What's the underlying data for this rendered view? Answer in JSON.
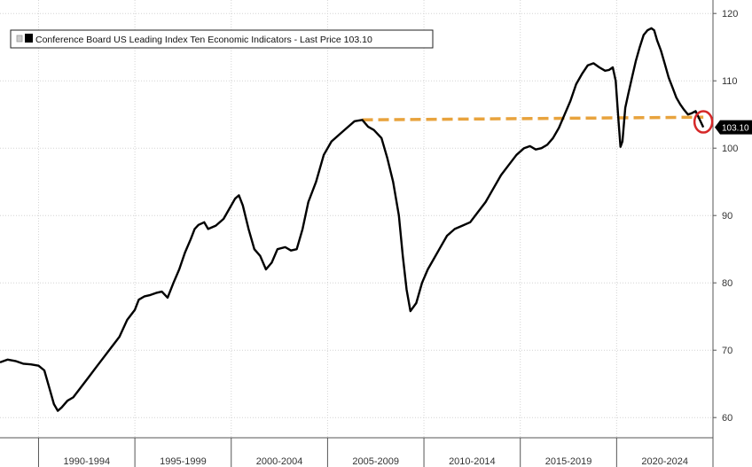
{
  "chart_data": {
    "type": "line",
    "legend": {
      "label": "Conference Board US Leading Index Ten Economic Indicators - Last Price 103.10",
      "placement": "top-left"
    },
    "last_price_label": "103.10",
    "x_labels": [
      "1990-1994",
      "1995-1999",
      "2000-2004",
      "2005-2009",
      "2010-2014",
      "2015-2019",
      "2020-2024"
    ],
    "xlim": [
      1988.0,
      2025.0
    ],
    "ylim": [
      57,
      122
    ],
    "y_ticks": [
      60,
      70,
      80,
      90,
      100,
      110,
      120
    ],
    "grid": true,
    "colors": {
      "series": "#000000",
      "reference": "#e8a33d",
      "highlight": "#d62828",
      "last_badge": "#000000"
    },
    "reference_line": {
      "x_start": 2006.8,
      "x_end": 2024.5,
      "y_start": 104.2,
      "y_end": 104.6
    },
    "highlight_point": {
      "x": 2024.5,
      "y": 103.9
    },
    "series": [
      {
        "x": [
          1988.0,
          1988.4,
          1988.8,
          1989.2,
          1989.6,
          1990.0,
          1990.3,
          1990.6,
          1990.8,
          1991.0,
          1991.2,
          1991.5,
          1991.8,
          1992.2,
          1992.6,
          1993.0,
          1993.4,
          1993.8,
          1994.2,
          1994.6,
          1995.0,
          1995.2,
          1995.5,
          1995.8,
          1996.1,
          1996.4,
          1996.7,
          1997.0,
          1997.3,
          1997.6,
          1997.9,
          1998.1,
          1998.3,
          1998.6,
          1998.8,
          1999.2,
          1999.6,
          1999.9,
          2000.2,
          2000.4,
          2000.6,
          2000.9,
          2001.2,
          2001.5,
          2001.8,
          2002.1,
          2002.4,
          2002.8,
          2003.1,
          2003.4,
          2003.7,
          2004.0,
          2004.4,
          2004.8,
          2005.2,
          2005.6,
          2006.0,
          2006.4,
          2006.8,
          2007.1,
          2007.4,
          2007.8,
          2008.1,
          2008.4,
          2008.7,
          2008.9,
          2009.1,
          2009.3,
          2009.6,
          2009.9,
          2010.2,
          2010.5,
          2010.8,
          2011.2,
          2011.6,
          2012.0,
          2012.4,
          2012.8,
          2013.2,
          2013.6,
          2014.0,
          2014.4,
          2014.8,
          2015.2,
          2015.5,
          2015.8,
          2016.1,
          2016.4,
          2016.7,
          2017.0,
          2017.3,
          2017.6,
          2017.9,
          2018.2,
          2018.5,
          2018.8,
          2019.1,
          2019.4,
          2019.6,
          2019.8,
          2019.95,
          2020.1,
          2020.2,
          2020.3,
          2020.45,
          2020.6,
          2020.8,
          2021.0,
          2021.2,
          2021.4,
          2021.6,
          2021.8,
          2021.95,
          2022.1,
          2022.3,
          2022.5,
          2022.7,
          2022.9,
          2023.1,
          2023.3,
          2023.5,
          2023.7,
          2023.9,
          2024.1,
          2024.3,
          2024.5
        ],
        "y": [
          68.2,
          68.6,
          68.4,
          68.0,
          67.9,
          67.7,
          67.0,
          64.0,
          62.0,
          61.0,
          61.5,
          62.5,
          63.0,
          64.5,
          66.0,
          67.5,
          69.0,
          70.5,
          72.0,
          74.5,
          76.0,
          77.5,
          78.0,
          78.2,
          78.5,
          78.7,
          77.8,
          80.0,
          82.0,
          84.5,
          86.5,
          88.0,
          88.6,
          89.0,
          88.0,
          88.5,
          89.5,
          91.0,
          92.5,
          93.0,
          91.5,
          88.0,
          85.0,
          84.0,
          82.0,
          83.0,
          85.0,
          85.3,
          84.8,
          85.0,
          88.0,
          92.0,
          95.0,
          99.0,
          101.0,
          102.0,
          103.0,
          104.0,
          104.2,
          103.2,
          102.7,
          101.5,
          98.5,
          95.0,
          90.0,
          84.0,
          79.0,
          75.8,
          77.0,
          80.0,
          82.0,
          83.5,
          85.0,
          87.0,
          88.0,
          88.5,
          89.0,
          90.5,
          92.0,
          94.0,
          96.0,
          97.5,
          99.0,
          100.0,
          100.3,
          99.8,
          100.0,
          100.5,
          101.5,
          103.0,
          105.0,
          107.0,
          109.5,
          111.0,
          112.3,
          112.6,
          112.0,
          111.5,
          111.6,
          112.0,
          110.0,
          104.0,
          100.2,
          101.0,
          106.0,
          108.0,
          110.5,
          113.0,
          115.0,
          116.8,
          117.5,
          117.8,
          117.5,
          116.0,
          114.5,
          112.5,
          110.5,
          109.0,
          107.5,
          106.5,
          105.7,
          105.0,
          105.2,
          105.5,
          104.3,
          103.1
        ]
      }
    ]
  }
}
